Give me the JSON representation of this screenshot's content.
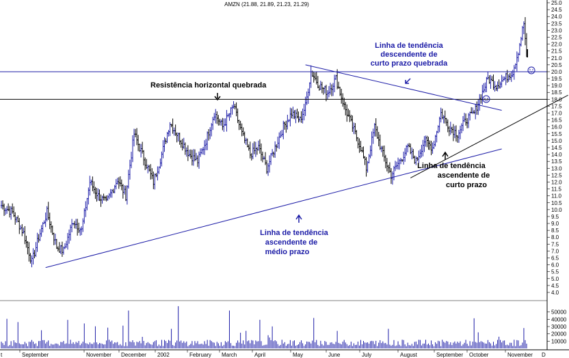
{
  "chart_data": {
    "type": "ohlc",
    "title": "AMZN (21.88, 21.89, 21.23, 21.29)",
    "y_axis": {
      "ylim": [
        4.0,
        25.0
      ],
      "ticks": [
        "25.0",
        "24.5",
        "24.0",
        "23.5",
        "23.0",
        "22.5",
        "22.0",
        "21.5",
        "21.0",
        "20.5",
        "20.0",
        "19.5",
        "19.0",
        "18.5",
        "18.0",
        "17.5",
        "17.0",
        "16.5",
        "16.0",
        "15.5",
        "15.0",
        "14.5",
        "14.0",
        "13.5",
        "13.0",
        "12.5",
        "12.0",
        "11.5",
        "11.0",
        "10.5",
        "10.0",
        "9.5",
        "9.0",
        "8.5",
        "8.0",
        "7.5",
        "7.0",
        "6.5",
        "6.0",
        "5.5",
        "5.0",
        "4.5",
        "4.0"
      ]
    },
    "volume_axis": {
      "ticks": [
        "50000",
        "40000",
        "30000",
        "20000",
        "10000"
      ],
      "ylim": [
        0,
        60000
      ]
    },
    "x_axis": {
      "start_label": "t",
      "end_label": "D",
      "months": [
        "September",
        "November",
        "December",
        "2002",
        "February",
        "March",
        "April",
        "May",
        "June",
        "July",
        "August",
        "September",
        "October",
        "November"
      ]
    },
    "price_anchors": [
      {
        "i": 0,
        "v": 10.3
      },
      {
        "i": 8,
        "v": 9.8
      },
      {
        "i": 16,
        "v": 8.3
      },
      {
        "i": 22,
        "v": 6.2
      },
      {
        "i": 27,
        "v": 8.0
      },
      {
        "i": 33,
        "v": 9.8
      },
      {
        "i": 40,
        "v": 7.3
      },
      {
        "i": 45,
        "v": 7.0
      },
      {
        "i": 52,
        "v": 9.2
      },
      {
        "i": 58,
        "v": 8.5
      },
      {
        "i": 64,
        "v": 12.0
      },
      {
        "i": 70,
        "v": 11.0
      },
      {
        "i": 76,
        "v": 10.5
      },
      {
        "i": 84,
        "v": 12.2
      },
      {
        "i": 90,
        "v": 11.0
      },
      {
        "i": 96,
        "v": 15.5
      },
      {
        "i": 102,
        "v": 14.0
      },
      {
        "i": 110,
        "v": 12.0
      },
      {
        "i": 116,
        "v": 14.0
      },
      {
        "i": 122,
        "v": 16.3
      },
      {
        "i": 130,
        "v": 15.0
      },
      {
        "i": 136,
        "v": 14.0
      },
      {
        "i": 142,
        "v": 13.5
      },
      {
        "i": 148,
        "v": 15.0
      },
      {
        "i": 154,
        "v": 17.0
      },
      {
        "i": 160,
        "v": 16.0
      },
      {
        "i": 168,
        "v": 17.5
      },
      {
        "i": 174,
        "v": 15.5
      },
      {
        "i": 180,
        "v": 14.0
      },
      {
        "i": 186,
        "v": 14.5
      },
      {
        "i": 192,
        "v": 13.0
      },
      {
        "i": 198,
        "v": 14.5
      },
      {
        "i": 204,
        "v": 16.0
      },
      {
        "i": 210,
        "v": 17.0
      },
      {
        "i": 216,
        "v": 16.5
      },
      {
        "i": 220,
        "v": 17.5
      },
      {
        "i": 224,
        "v": 20.0
      },
      {
        "i": 230,
        "v": 19.0
      },
      {
        "i": 236,
        "v": 18.5
      },
      {
        "i": 242,
        "v": 19.5
      },
      {
        "i": 248,
        "v": 17.5
      },
      {
        "i": 254,
        "v": 16.0
      },
      {
        "i": 260,
        "v": 14.5
      },
      {
        "i": 264,
        "v": 13.0
      },
      {
        "i": 270,
        "v": 16.0
      },
      {
        "i": 276,
        "v": 14.0
      },
      {
        "i": 282,
        "v": 12.5
      },
      {
        "i": 288,
        "v": 13.5
      },
      {
        "i": 294,
        "v": 14.5
      },
      {
        "i": 300,
        "v": 13.5
      },
      {
        "i": 306,
        "v": 15.0
      },
      {
        "i": 312,
        "v": 14.5
      },
      {
        "i": 318,
        "v": 17.0
      },
      {
        "i": 324,
        "v": 16.0
      },
      {
        "i": 330,
        "v": 15.5
      },
      {
        "i": 336,
        "v": 16.5
      },
      {
        "i": 342,
        "v": 17.0
      },
      {
        "i": 348,
        "v": 18.5
      },
      {
        "i": 352,
        "v": 19.5
      },
      {
        "i": 358,
        "v": 19.0
      },
      {
        "i": 364,
        "v": 19.5
      },
      {
        "i": 370,
        "v": 20.0
      },
      {
        "i": 374,
        "v": 21.5
      },
      {
        "i": 378,
        "v": 23.5
      },
      {
        "i": 380,
        "v": 21.3
      }
    ],
    "annotations": {
      "horizontal_resistance_label": "Resistência horizontal quebrada",
      "descending_trend": [
        "Linha de tendência",
        "descendente de",
        "curto prazo quebrada"
      ],
      "short_ascending_trend": [
        "Linha de tendência",
        "ascendente de",
        "curto prazo"
      ],
      "medium_ascending_trend": [
        "Linha de tendência",
        "ascendente de",
        "médio prazo"
      ]
    },
    "lines": {
      "resistance_20": 20.0,
      "resistance_18": 18.0,
      "medium_trend": {
        "start": [
          32,
          5.8
        ],
        "end": [
          362,
          14.4
        ]
      },
      "short_trend": {
        "start": [
          296,
          12.3
        ],
        "end": [
          410,
          18.3
        ]
      },
      "descending_trend": {
        "start": [
          220,
          20.5
        ],
        "end": [
          362,
          17.2
        ]
      }
    },
    "colors": {
      "price": "#1a1aa6",
      "trend_blue": "#1a1aa6",
      "trend_black": "#000000",
      "volume": "#1a1aa6"
    }
  }
}
